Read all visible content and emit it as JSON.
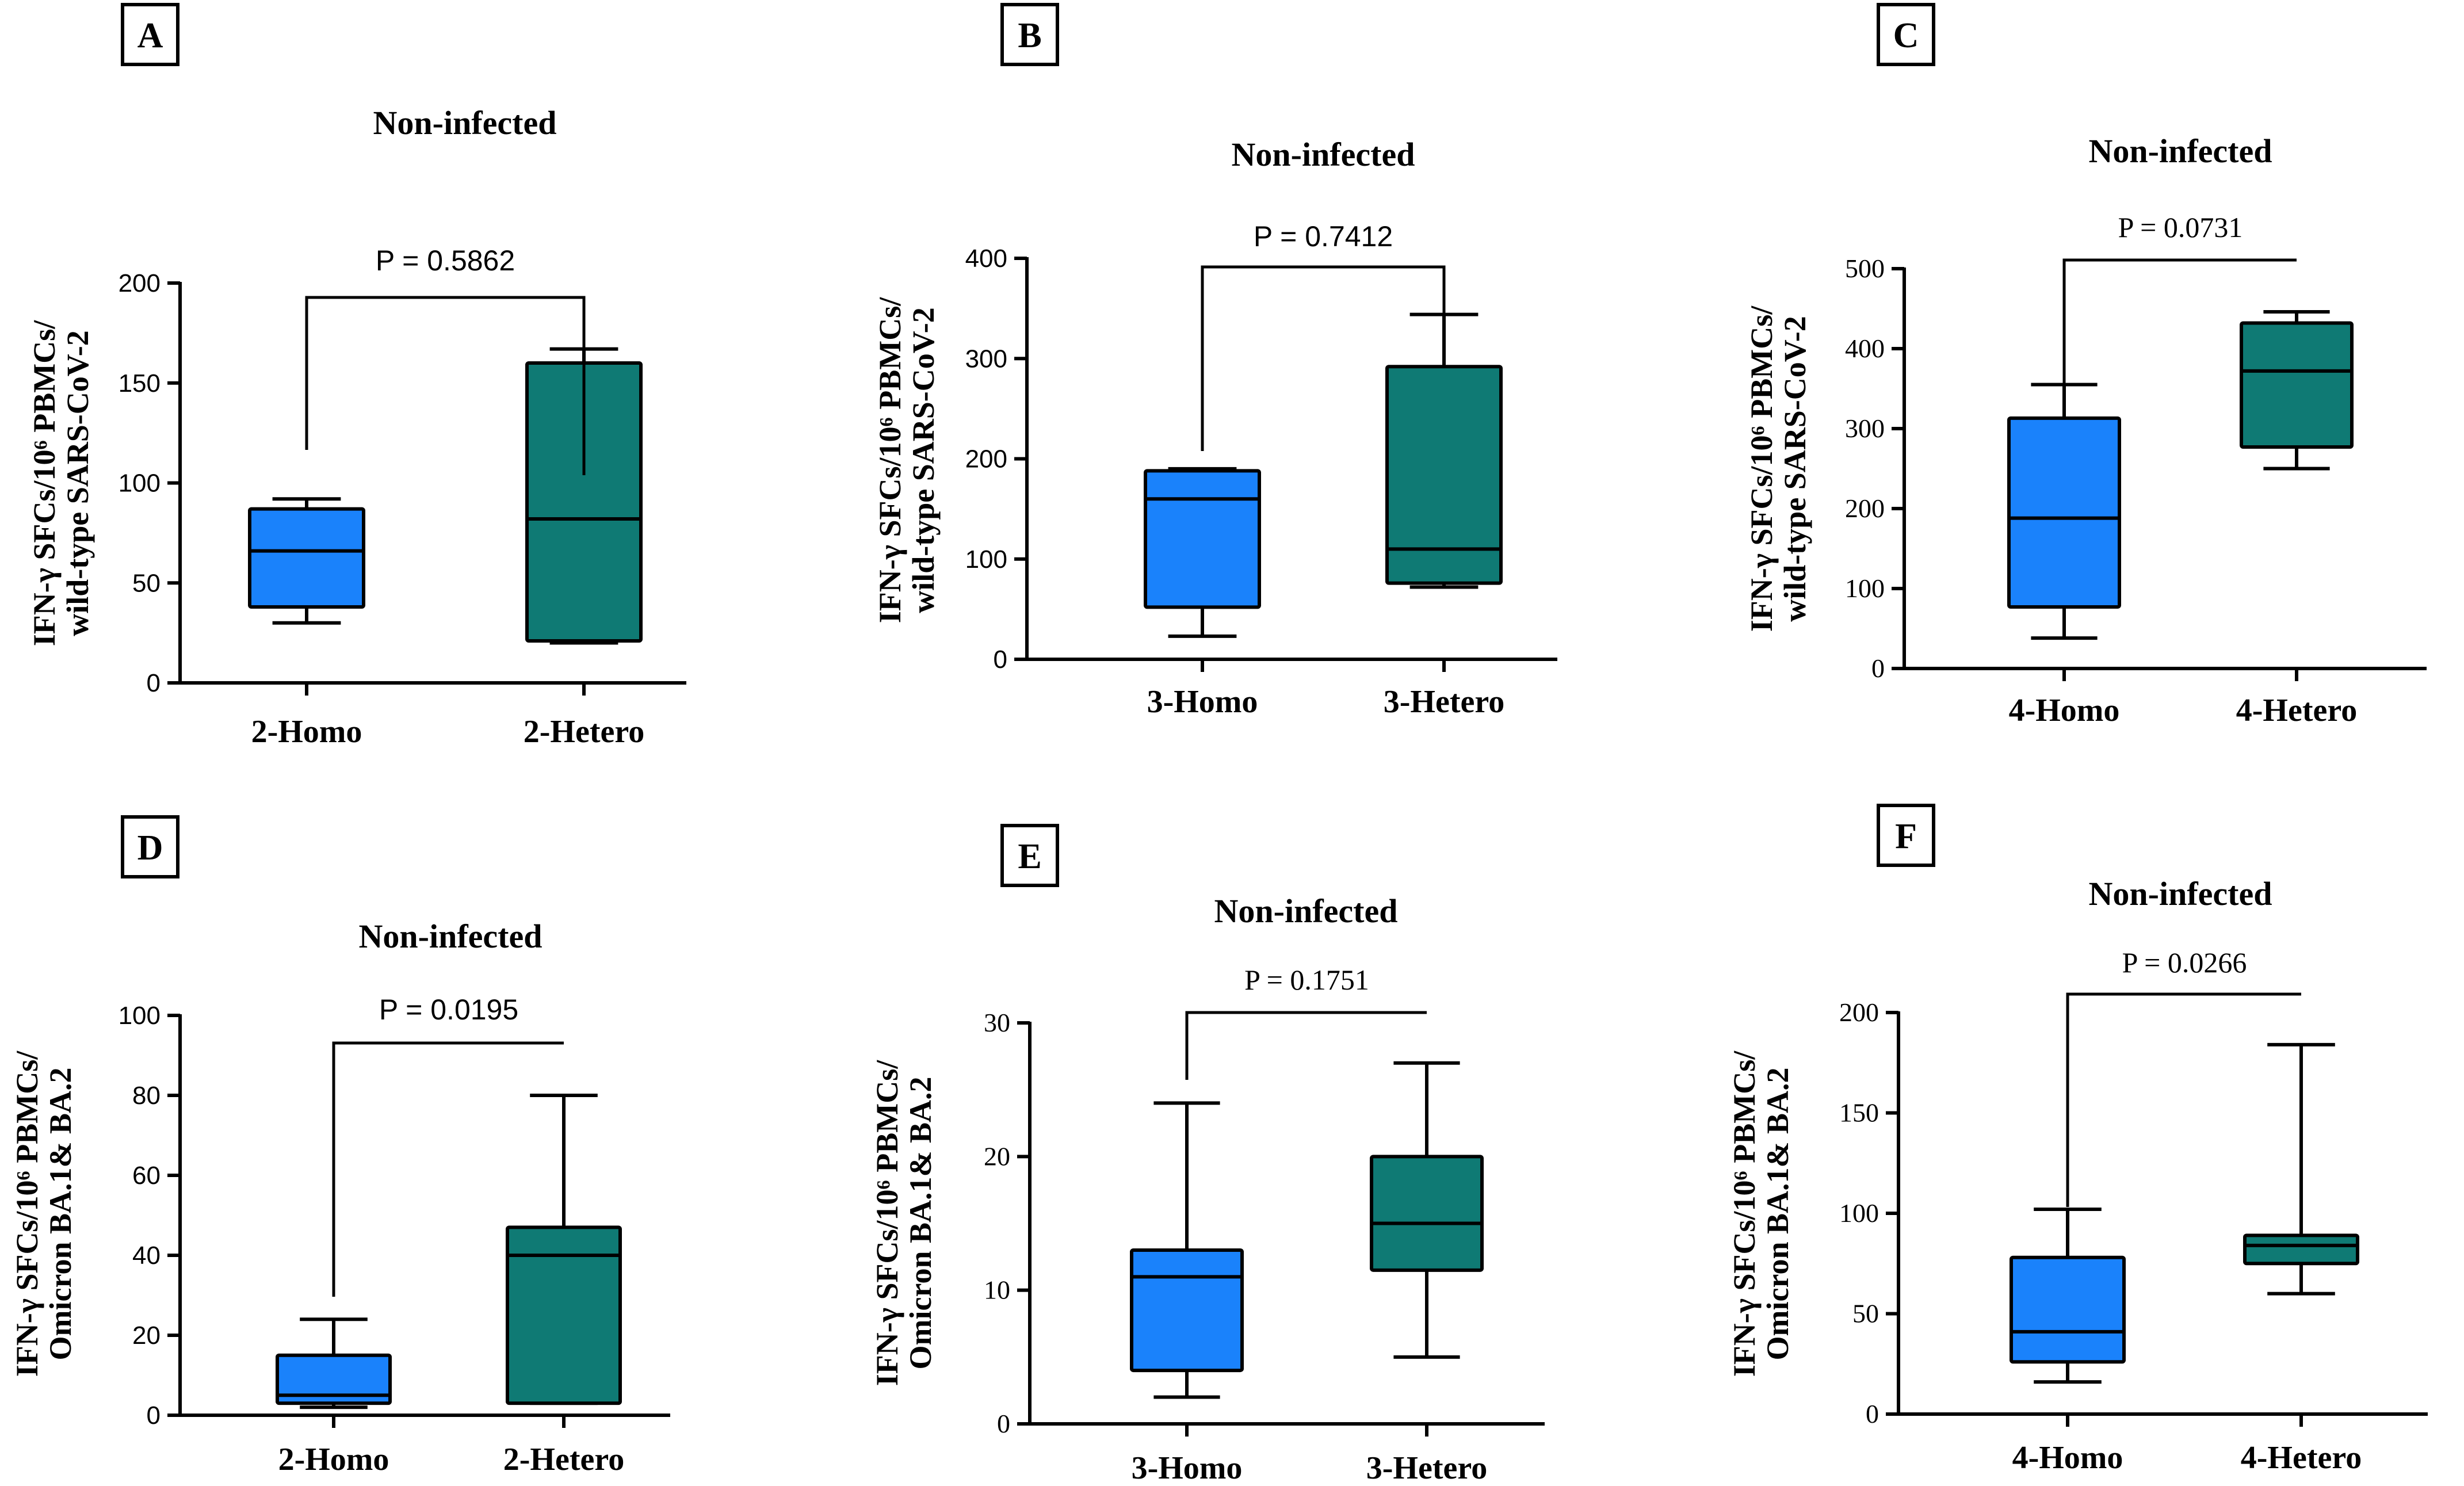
{
  "chart_data": [
    {
      "panel": "A",
      "type": "box",
      "title": "Non-infected",
      "ylabel_line1": "IFN-γ  SFCs/10⁶ PBMCs/",
      "ylabel_line2": "wild-type SARS-CoV-2",
      "yticks": [
        "0",
        "50",
        "100",
        "150",
        "200"
      ],
      "ylim": [
        0,
        200
      ],
      "pvalue": "P = 0.5862",
      "groups": [
        {
          "name": "2-Homo",
          "min": 30,
          "q1": 38,
          "median": 66,
          "q3": 87,
          "max": 92
        },
        {
          "name": "2-Hetero",
          "min": 20,
          "q1": 21,
          "median": 82,
          "q3": 160,
          "max": 167
        }
      ]
    },
    {
      "panel": "B",
      "type": "box",
      "title": "Non-infected",
      "ylabel_line1": "IFN-γ  SFCs/10⁶ PBMCs/",
      "ylabel_line2": "wild-type SARS-CoV-2",
      "yticks": [
        "0",
        "100",
        "200",
        "300",
        "400"
      ],
      "ylim": [
        0,
        400
      ],
      "pvalue": "P = 0.7412",
      "groups": [
        {
          "name": "3-Homo",
          "min": 23,
          "q1": 52,
          "median": 160,
          "q3": 188,
          "max": 190
        },
        {
          "name": "3-Hetero",
          "min": 72,
          "q1": 76,
          "median": 110,
          "q3": 292,
          "max": 344
        }
      ]
    },
    {
      "panel": "C",
      "type": "box",
      "title": "Non-infected",
      "ylabel_line1": "IFN-γ  SFCs/10⁶ PBMCs/",
      "ylabel_line2": "wild-type SARS-CoV-2",
      "yticks": [
        "0",
        "100",
        "200",
        "300",
        "400",
        "500"
      ],
      "ylim": [
        0,
        500
      ],
      "pvalue": "P = 0.0731",
      "groups": [
        {
          "name": "4-Homo",
          "min": 38,
          "q1": 77,
          "median": 188,
          "q3": 313,
          "max": 355
        },
        {
          "name": "4-Hetero",
          "min": 250,
          "q1": 277,
          "median": 372,
          "q3": 432,
          "max": 446
        }
      ]
    },
    {
      "panel": "D",
      "type": "box",
      "title": "Non-infected",
      "ylabel_line1": "IFN-γ  SFCs/10⁶ PBMCs/",
      "ylabel_line2": "Omicron BA.1& BA.2",
      "yticks": [
        "0",
        "20",
        "40",
        "60",
        "80",
        "100"
      ],
      "ylim": [
        0,
        100
      ],
      "pvalue": "P = 0.0195",
      "groups": [
        {
          "name": "2-Homo",
          "min": 2,
          "q1": 3,
          "median": 5,
          "q3": 15,
          "max": 24
        },
        {
          "name": "2-Hetero",
          "min": 3,
          "q1": 3,
          "median": 40,
          "q3": 47,
          "max": 80
        }
      ]
    },
    {
      "panel": "E",
      "type": "box",
      "title": "Non-infected",
      "ylabel_line1": "IFN-γ  SFCs/10⁶ PBMCs/",
      "ylabel_line2": "Omicron BA.1& BA.2",
      "yticks": [
        "0",
        "10",
        "20",
        "30"
      ],
      "ylim": [
        0,
        30
      ],
      "pvalue": "P = 0.1751",
      "groups": [
        {
          "name": "3-Homo",
          "min": 2,
          "q1": 4,
          "median": 11,
          "q3": 13,
          "max": 24
        },
        {
          "name": "3-Hetero",
          "min": 5,
          "q1": 11.5,
          "median": 15,
          "q3": 20,
          "max": 27
        }
      ]
    },
    {
      "panel": "F",
      "type": "box",
      "title": "Non-infected",
      "ylabel_line1": "IFN-γ  SFCs/10⁶ PBMCs/",
      "ylabel_line2": "Omicron BA.1& BA.2",
      "yticks": [
        "0",
        "50",
        "100",
        "150",
        "200"
      ],
      "ylim": [
        0,
        200
      ],
      "pvalue": "P = 0.0266",
      "groups": [
        {
          "name": "4-Homo",
          "min": 16,
          "q1": 26,
          "median": 41,
          "q3": 78,
          "max": 102
        },
        {
          "name": "4-Hetero",
          "min": 60,
          "q1": 75,
          "median": 84,
          "q3": 89,
          "max": 184
        }
      ]
    }
  ],
  "colors": {
    "homo": "#1a82fb",
    "hetero": "#0f7a74",
    "axis": "#000000"
  }
}
